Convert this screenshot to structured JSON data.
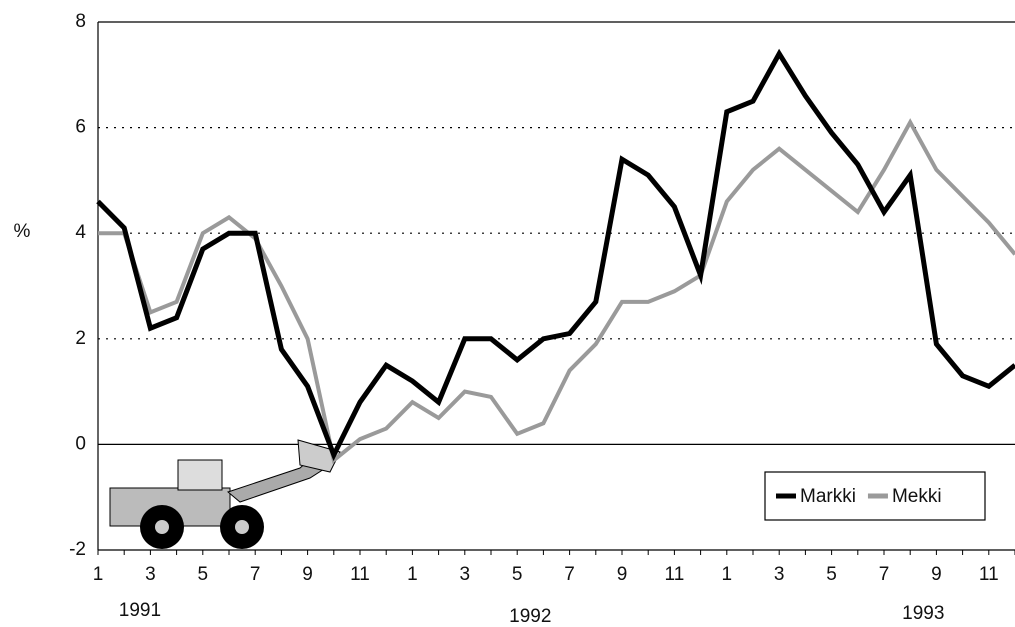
{
  "chart_data": {
    "type": "line",
    "y_label": "%",
    "categories": [
      "1",
      null,
      "3",
      null,
      "5",
      null,
      "7",
      null,
      "9",
      null,
      "11",
      null,
      "1",
      null,
      "3",
      null,
      "5",
      null,
      "7",
      null,
      "9",
      null,
      "11",
      null,
      "1",
      null,
      "3",
      null,
      "5",
      null,
      "7",
      null,
      "9",
      null,
      "11",
      null
    ],
    "year_labels": [
      "1991",
      "1992",
      "1993"
    ],
    "series": [
      {
        "name": "Markki",
        "color": "#000000",
        "values": [
          4.6,
          4.1,
          2.2,
          2.4,
          3.7,
          4.0,
          4.0,
          1.8,
          1.1,
          -0.2,
          0.8,
          1.5,
          1.2,
          0.8,
          2.0,
          2.0,
          1.6,
          2.0,
          2.1,
          2.7,
          5.4,
          5.1,
          4.5,
          3.2,
          6.3,
          6.5,
          7.4,
          6.6,
          5.9,
          5.3,
          4.4,
          5.1,
          1.9,
          1.3,
          1.1,
          1.5
        ]
      },
      {
        "name": "Mekki",
        "color": "#9a9a9a",
        "values": [
          4.0,
          4.0,
          2.5,
          2.7,
          4.0,
          4.3,
          3.9,
          3.0,
          2.0,
          -0.3,
          0.1,
          0.3,
          0.8,
          0.5,
          1.0,
          0.9,
          0.2,
          0.4,
          1.4,
          1.9,
          2.7,
          2.7,
          2.9,
          3.2,
          4.6,
          5.2,
          5.6,
          5.2,
          4.8,
          4.4,
          5.2,
          6.1,
          5.2,
          4.7,
          4.2,
          3.6
        ]
      }
    ],
    "ylim": [
      -2,
      8
    ],
    "yticks": [
      -2,
      0,
      2,
      4,
      6,
      8
    ],
    "grid": true,
    "legend": "lower right"
  }
}
